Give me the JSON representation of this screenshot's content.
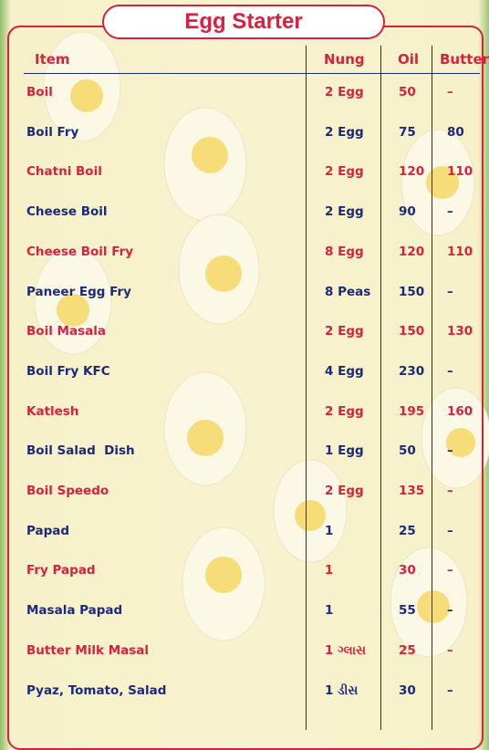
{
  "header": {
    "title": "Egg Starter"
  },
  "table": {
    "columns": [
      "Item",
      "Nung",
      "Oil",
      "Butter"
    ],
    "rows": [
      [
        "Boil",
        "2 Egg",
        50,
        "–"
      ],
      [
        "Boil Fry",
        "2 Egg",
        75,
        80
      ],
      [
        "Chatni Boil",
        "2 Egg",
        120,
        110
      ],
      [
        "Cheese Boil",
        "2 Egg",
        90,
        "–"
      ],
      [
        "Cheese Boil Fry",
        "8 Egg",
        120,
        110
      ],
      [
        "Paneer Egg Fry",
        "8 Peas",
        150,
        "–"
      ],
      [
        "Boil Masala",
        "2 Egg",
        150,
        130
      ],
      [
        "Boil Fry KFC",
        "4 Egg",
        230,
        "–"
      ],
      [
        "Katlesh",
        "2 Egg",
        195,
        160
      ],
      [
        "Boil Salad  Dish",
        "1 Egg",
        50,
        "–"
      ],
      [
        "Boil Speedo",
        "2 Egg",
        135,
        "–"
      ],
      [
        "Papad",
        "1",
        25,
        "–"
      ],
      [
        "Fry Papad",
        "1",
        30,
        "–"
      ],
      [
        "Masala Papad",
        "1",
        55,
        "–"
      ],
      [
        "Butter Milk Masal",
        "1 ગ્લાસ",
        25,
        "–"
      ],
      [
        "Pyaz, Tomato, Salad",
        "1 ડીસ",
        30,
        "–"
      ]
    ]
  }
}
